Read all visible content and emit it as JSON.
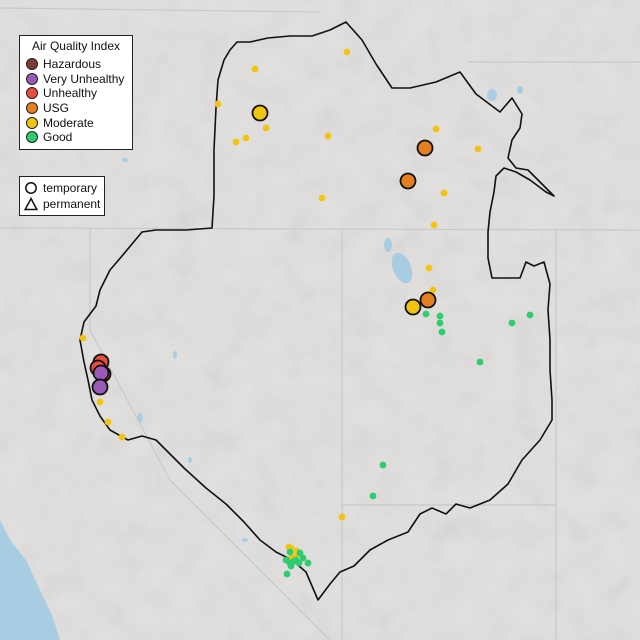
{
  "legend": {
    "title": "Air Quality Index",
    "categories": [
      {
        "label": "Hazardous",
        "color": "#7e3b3b"
      },
      {
        "label": "Very Unhealthy",
        "color": "#9b59b6"
      },
      {
        "label": "Unhealthy",
        "color": "#e74c3c"
      },
      {
        "label": "USG",
        "color": "#e67e22"
      },
      {
        "label": "Moderate",
        "color": "#f1c40f"
      },
      {
        "label": "Good",
        "color": "#2ecc71"
      }
    ],
    "types": [
      {
        "label": "temporary",
        "icon": "circle-icon"
      },
      {
        "label": "permanent",
        "icon": "triangle-icon"
      }
    ]
  },
  "map": {
    "background": "#e2e0de",
    "water_color": "#a8cce2",
    "boundary_color": "#111111",
    "state_line_color": "#c8c8c8",
    "monitors": {
      "large": [
        {
          "category": "Moderate",
          "count": 2
        },
        {
          "category": "USG",
          "count": 3
        },
        {
          "category": "Unhealthy",
          "count": 3
        },
        {
          "category": "Very Unhealthy",
          "count": 2
        }
      ],
      "small": [
        {
          "category": "Moderate",
          "count": 28
        },
        {
          "category": "Good",
          "count": 20
        }
      ]
    }
  }
}
